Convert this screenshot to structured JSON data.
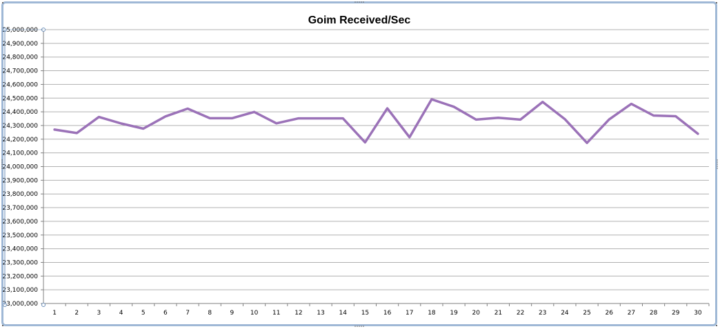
{
  "colors": {
    "series": "#9b72b8",
    "frame_border": "#9fb8d6",
    "grid": "#b0b0b0"
  },
  "chart_data": {
    "type": "line",
    "title": "Goim Received/Sec",
    "xlabel": "",
    "ylabel": "",
    "x": [
      1,
      2,
      3,
      4,
      5,
      6,
      7,
      8,
      9,
      10,
      11,
      12,
      13,
      14,
      15,
      16,
      17,
      18,
      19,
      20,
      21,
      22,
      23,
      24,
      25,
      26,
      27,
      28,
      29,
      30
    ],
    "series": [
      {
        "values": [
          24270000,
          24245000,
          24362000,
          24315000,
          24277000,
          24366000,
          24423000,
          24353000,
          24353000,
          24399000,
          24316000,
          24352000,
          24352000,
          24352000,
          24177000,
          24425000,
          24214000,
          24491000,
          24437000,
          24343000,
          24356000,
          24343000,
          24472000,
          24347000,
          24173000,
          24344000,
          24458000,
          24373000,
          24368000,
          24240000
        ]
      }
    ],
    "ylim": [
      23000000,
      25000000
    ],
    "y_ticks": [
      "23,000,000",
      "23,100,000",
      "23,200,000",
      "23,300,000",
      "23,400,000",
      "23,500,000",
      "23,600,000",
      "23,700,000",
      "23,800,000",
      "23,900,000",
      "24,000,000",
      "24,100,000",
      "24,200,000",
      "24,300,000",
      "24,400,000",
      "24,500,000",
      "24,600,000",
      "24,700,000",
      "24,800,000",
      "24,900,000",
      "25,000,000"
    ],
    "x_ticks": [
      "1",
      "2",
      "3",
      "4",
      "5",
      "6",
      "7",
      "8",
      "9",
      "10",
      "11",
      "12",
      "13",
      "14",
      "15",
      "16",
      "17",
      "18",
      "19",
      "20",
      "21",
      "22",
      "23",
      "24",
      "25",
      "26",
      "27",
      "28",
      "29",
      "30"
    ],
    "grid": true,
    "legend": "none"
  }
}
